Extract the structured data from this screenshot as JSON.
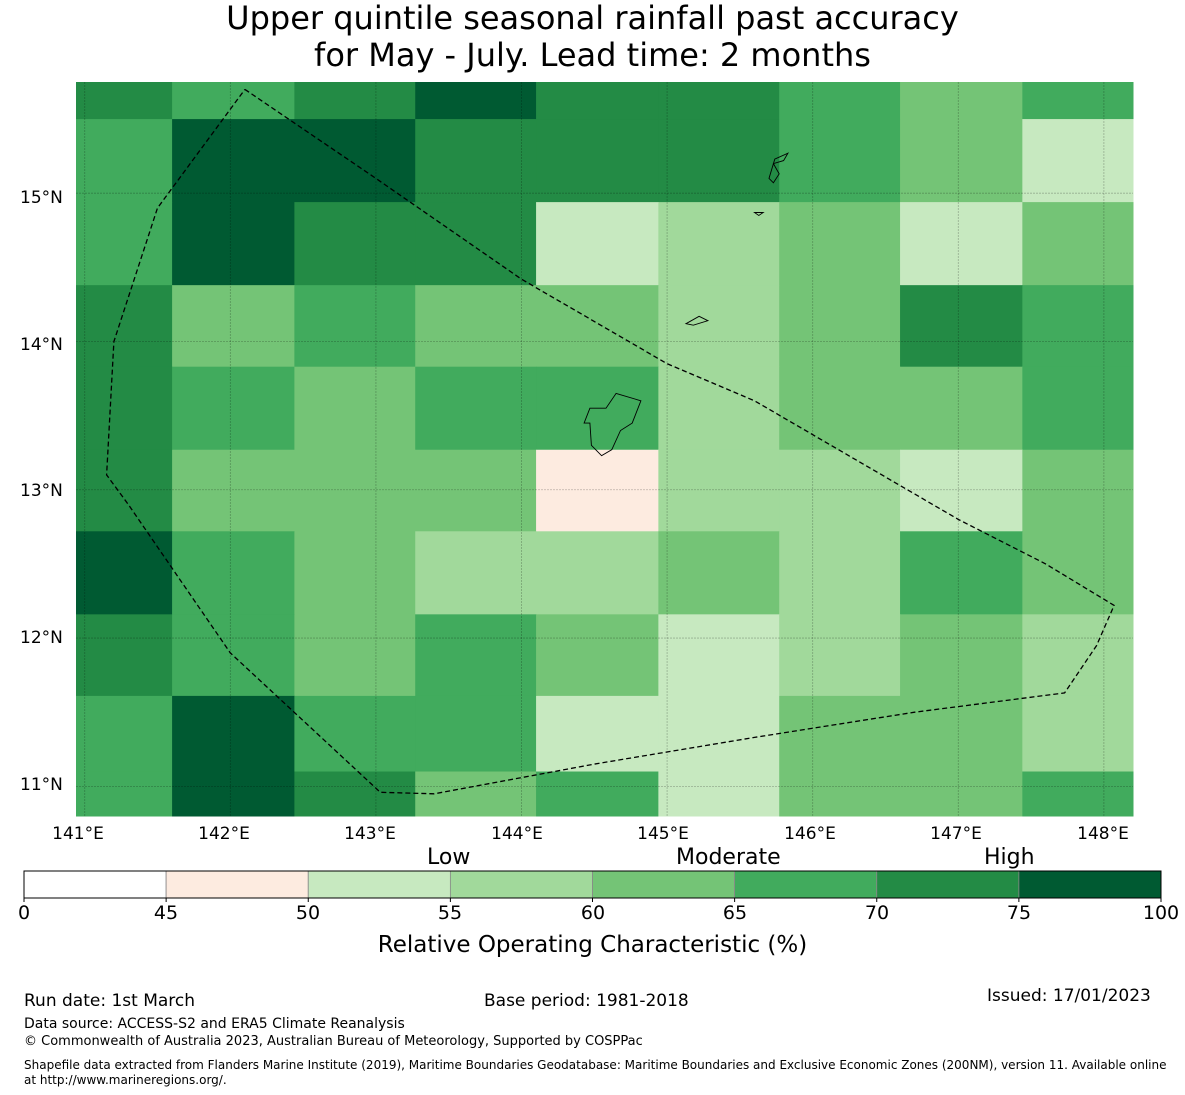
{
  "title": {
    "line1": "Upper quintile seasonal rainfall past accuracy",
    "line2": "for May - July. Lead time: 2 months"
  },
  "map": {
    "lon_edges": [
      140.94,
      141.6,
      142.44,
      143.27,
      144.1,
      144.94,
      145.77,
      146.6,
      147.44,
      148.2
    ],
    "lat_edges": [
      15.75,
      15.5,
      14.94,
      14.38,
      13.83,
      13.27,
      12.72,
      12.16,
      11.61,
      11.1,
      10.8
    ],
    "roc_grid": [
      [
        72,
        67,
        72,
        78,
        72,
        72,
        67,
        62,
        67
      ],
      [
        67,
        78,
        78,
        72,
        72,
        72,
        67,
        62,
        52
      ],
      [
        67,
        78,
        72,
        72,
        52,
        57,
        62,
        52,
        62
      ],
      [
        72,
        62,
        67,
        62,
        62,
        57,
        62,
        72,
        67
      ],
      [
        72,
        67,
        62,
        67,
        67,
        57,
        62,
        62,
        67
      ],
      [
        72,
        62,
        62,
        62,
        47,
        57,
        57,
        52,
        62
      ],
      [
        78,
        67,
        62,
        57,
        57,
        62,
        57,
        67,
        62
      ],
      [
        72,
        67,
        62,
        67,
        62,
        52,
        57,
        62,
        57
      ],
      [
        67,
        78,
        67,
        67,
        52,
        52,
        62,
        62,
        57
      ],
      [
        67,
        78,
        72,
        62,
        67,
        52,
        62,
        62,
        67
      ]
    ],
    "lat_ticks": [
      15,
      14,
      13,
      12,
      11
    ],
    "lat_tick_labels": [
      "15°N",
      "14°N",
      "13°N",
      "12°N",
      "11°N"
    ],
    "lon_ticks": [
      141,
      142,
      143,
      144,
      145,
      146,
      147,
      148
    ],
    "lon_tick_labels": [
      "141°E",
      "142°E",
      "143°E",
      "144°E",
      "145°E",
      "146°E",
      "147°E",
      "148°E"
    ],
    "eez_boundary": [
      [
        142.1,
        15.7
      ],
      [
        143.0,
        15.1
      ],
      [
        144.0,
        14.42
      ],
      [
        145.0,
        13.85
      ],
      [
        145.6,
        13.6
      ],
      [
        146.3,
        13.2
      ],
      [
        147.0,
        12.8
      ],
      [
        147.6,
        12.5
      ],
      [
        148.07,
        12.22
      ],
      [
        147.95,
        11.95
      ],
      [
        147.73,
        11.63
      ],
      [
        146.7,
        11.5
      ],
      [
        145.6,
        11.33
      ],
      [
        144.5,
        11.15
      ],
      [
        143.4,
        10.95
      ],
      [
        143.03,
        10.96
      ],
      [
        142.0,
        11.9
      ],
      [
        141.3,
        12.9
      ],
      [
        141.15,
        13.1
      ],
      [
        141.2,
        14.0
      ],
      [
        141.5,
        14.9
      ],
      [
        142.1,
        15.7
      ]
    ],
    "islands": [
      {
        "name": "Guam",
        "coords": [
          [
            144.65,
            13.65
          ],
          [
            144.82,
            13.6
          ],
          [
            144.76,
            13.45
          ],
          [
            144.68,
            13.4
          ],
          [
            144.62,
            13.27
          ],
          [
            144.55,
            13.23
          ],
          [
            144.48,
            13.3
          ],
          [
            144.47,
            13.45
          ],
          [
            144.43,
            13.45
          ],
          [
            144.47,
            13.55
          ],
          [
            144.58,
            13.55
          ],
          [
            144.65,
            13.65
          ]
        ]
      },
      {
        "name": "Rota",
        "coords": [
          [
            145.13,
            14.12
          ],
          [
            145.22,
            14.17
          ],
          [
            145.28,
            14.14
          ],
          [
            145.18,
            14.11
          ],
          [
            145.13,
            14.12
          ]
        ]
      },
      {
        "name": "Tinian",
        "coords": [
          [
            145.6,
            14.87
          ],
          [
            145.66,
            14.87
          ],
          [
            145.63,
            14.85
          ],
          [
            145.6,
            14.87
          ]
        ]
      },
      {
        "name": "Saipan",
        "coords": [
          [
            145.73,
            15.07
          ],
          [
            145.77,
            15.13
          ],
          [
            145.73,
            15.2
          ],
          [
            145.8,
            15.22
          ],
          [
            145.83,
            15.27
          ],
          [
            145.74,
            15.23
          ],
          [
            145.7,
            15.1
          ],
          [
            145.73,
            15.07
          ]
        ]
      }
    ]
  },
  "colorbar": {
    "categories": [
      "Low",
      "Moderate",
      "High"
    ],
    "bounds": [
      0,
      45,
      50,
      55,
      60,
      65,
      70,
      75,
      100
    ],
    "tick_labels": [
      "0",
      "45",
      "50",
      "55",
      "60",
      "65",
      "70",
      "75",
      "100"
    ],
    "colors": [
      "#ffffff",
      "#fdebe0",
      "#c7e9c0",
      "#a1d99b",
      "#74c476",
      "#41ab5d",
      "#238b45",
      "#005a32"
    ],
    "label": "Relative Operating Characteristic (%)"
  },
  "footer": {
    "run_date": "Run date: 1st March",
    "base_period": "Base period: 1981-2018",
    "issued": "Issued: 17/01/2023",
    "data_source": "Data source: ACCESS-S2 and ERA5 Climate Reanalysis",
    "copyright": "© Commonwealth of Australia 2023, Australian Bureau of Meteorology, Supported by COSPPac",
    "shapefile_line1": "Shapefile data extracted from Flanders Marine Institute (2019), Maritime Boundaries Geodatabase: Maritime Boundaries and Exclusive Economic Zones (200NM), version 11. Available online",
    "shapefile_line2": "at http://www.marineregions.org/."
  }
}
